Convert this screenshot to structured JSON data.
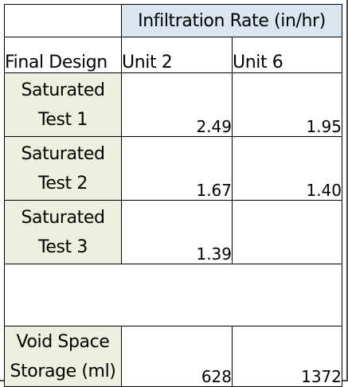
{
  "table": {
    "super_header": "Infiltration Rate (in/hr)",
    "corner_label": "Final Design",
    "columns": [
      "Unit 2",
      "Unit 6"
    ],
    "rows": [
      {
        "label_line1": "Saturated",
        "label_line2": "Test 1",
        "unit2": "2.49",
        "unit6": "1.95"
      },
      {
        "label_line1": "Saturated",
        "label_line2": "Test 2",
        "unit2": "1.67",
        "unit6": "1.40"
      },
      {
        "label_line1": "Saturated",
        "label_line2": "Test 3",
        "unit2": "1.39",
        "unit6": ""
      },
      {
        "label_line1": "",
        "label_line2": "",
        "unit2": "",
        "unit6": ""
      },
      {
        "label_line1": "Void Space",
        "label_line2": "Storage (ml)",
        "unit2": "628",
        "unit6": "1372"
      }
    ]
  },
  "colors": {
    "header_fill": "#dce6f1",
    "label_fill": "#ebf1de",
    "grid_line": "#000000"
  }
}
